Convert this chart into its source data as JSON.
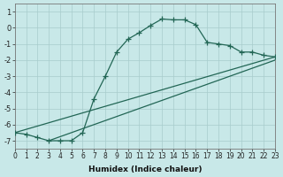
{
  "xlabel": "Humidex (Indice chaleur)",
  "ylabel": "",
  "bg_color": "#c8e8e8",
  "grid_color": "#a8cccc",
  "line_color": "#226655",
  "xlim": [
    0,
    23
  ],
  "ylim": [
    -7.5,
    1.5
  ],
  "yticks": [
    1,
    0,
    -1,
    -2,
    -3,
    -4,
    -5,
    -6,
    -7
  ],
  "xticks": [
    0,
    1,
    2,
    3,
    4,
    5,
    6,
    7,
    8,
    9,
    10,
    11,
    12,
    13,
    14,
    15,
    16,
    17,
    18,
    19,
    20,
    21,
    22,
    23
  ],
  "line1_x": [
    0,
    1,
    2,
    3,
    4,
    5,
    6,
    7,
    8,
    9,
    10,
    11,
    12,
    13,
    14,
    15,
    16,
    17,
    18,
    19,
    20,
    21,
    22,
    23
  ],
  "line1_y": [
    -6.5,
    -6.6,
    -6.8,
    -7.0,
    -7.0,
    -7.0,
    -6.5,
    -4.4,
    -3.0,
    -1.5,
    -0.7,
    -0.3,
    0.15,
    0.55,
    0.5,
    0.5,
    0.2,
    -0.9,
    -1.0,
    -1.1,
    -1.5,
    -1.5,
    -1.7,
    -1.8
  ],
  "line2_x": [
    0,
    23
  ],
  "line2_y": [
    -6.5,
    -1.8
  ],
  "line3_x": [
    3,
    23
  ],
  "line3_y": [
    -7.0,
    -2.0
  ]
}
